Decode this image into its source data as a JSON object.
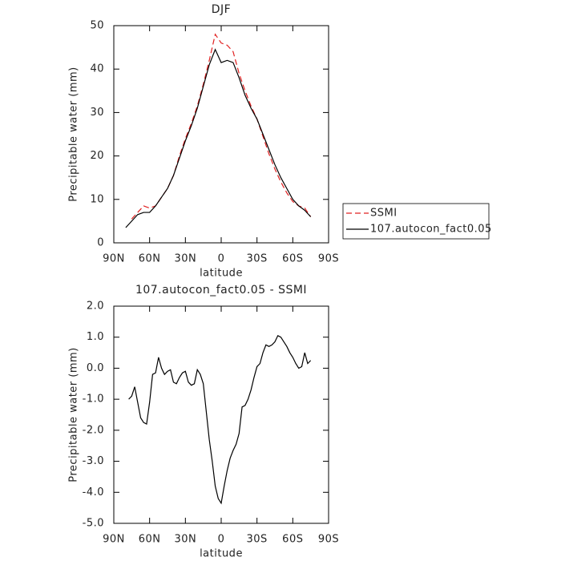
{
  "chart_data": [
    {
      "type": "line",
      "title": "DJF",
      "xlabel": "latitude",
      "ylabel": "Precipitable water (mm)",
      "x": [
        80,
        75,
        70,
        65,
        60,
        55,
        50,
        45,
        40,
        35,
        30,
        25,
        20,
        15,
        10,
        5,
        0,
        -5,
        -10,
        -15,
        -20,
        -25,
        -30,
        -35,
        -40,
        -45,
        -50,
        -55,
        -60,
        -65,
        -70,
        -75
      ],
      "series": [
        {
          "name": "SSMI",
          "color": "#e02020",
          "dash": "dashed",
          "values": [
            null,
            5.5,
            7,
            8.5,
            8,
            8.5,
            10.5,
            12.5,
            15.5,
            20,
            24,
            27.5,
            31.5,
            36.5,
            42,
            48,
            46,
            45.5,
            44,
            39,
            35,
            31.5,
            28.5,
            24.5,
            20.5,
            17,
            14,
            11.5,
            9.5,
            8.5,
            8,
            6
          ]
        },
        {
          "name": "107.autocon_fact0.05",
          "color": "#000000",
          "dash": "solid",
          "values": [
            3.5,
            5,
            6.5,
            7,
            7,
            8.5,
            10.5,
            12.5,
            15.5,
            19.5,
            23.5,
            27,
            31,
            36,
            41,
            44.5,
            41.5,
            42,
            41.5,
            38,
            34,
            31,
            28.5,
            25,
            21.5,
            18,
            15,
            12.5,
            10,
            8.5,
            7.5,
            6
          ]
        }
      ],
      "xlim": [
        90,
        -90
      ],
      "xticks": [
        {
          "value": 90,
          "label": "90N"
        },
        {
          "value": 60,
          "label": "60N"
        },
        {
          "value": 30,
          "label": "30N"
        },
        0,
        {
          "value": -30,
          "label": "30S"
        },
        {
          "value": -60,
          "label": "60S"
        },
        {
          "value": -90,
          "label": "90S"
        }
      ],
      "ylim": [
        0,
        50
      ],
      "yticks": [
        0,
        10,
        20,
        30,
        40,
        50
      ],
      "legend": "right"
    },
    {
      "type": "line",
      "title": "107.autocon_fact0.05 - SSMI",
      "xlabel": "latitude",
      "ylabel": "Precipitable water (mm)",
      "x": [
        77.5,
        75,
        72.5,
        70,
        67.5,
        65,
        62.5,
        60,
        57.5,
        55,
        52.5,
        50,
        47.5,
        45,
        42.5,
        40,
        37.5,
        35,
        32.5,
        30,
        27.5,
        25,
        22.5,
        20,
        17.5,
        15,
        12.5,
        10,
        7.5,
        5,
        2.5,
        0,
        -2.5,
        -5,
        -7.5,
        -10,
        -12.5,
        -15,
        -17.5,
        -20,
        -22.5,
        -25,
        -27.5,
        -30,
        -32.5,
        -35,
        -37.5,
        -40,
        -42.5,
        -45,
        -47.5,
        -50,
        -52.5,
        -55,
        -57.5,
        -60,
        -62.5,
        -65,
        -67.5,
        -70,
        -72.5,
        -75
      ],
      "series": [
        {
          "color": "#000000",
          "dash": "solid",
          "values": [
            -1.0,
            -0.9,
            -0.6,
            -1.1,
            -1.6,
            -1.75,
            -1.8,
            -1.1,
            -0.2,
            -0.15,
            0.35,
            0.0,
            -0.2,
            -0.1,
            -0.05,
            -0.45,
            -0.5,
            -0.3,
            -0.15,
            -0.1,
            -0.45,
            -0.55,
            -0.5,
            -0.05,
            -0.2,
            -0.5,
            -1.4,
            -2.3,
            -3.0,
            -3.8,
            -4.2,
            -4.35,
            -3.8,
            -3.3,
            -2.9,
            -2.65,
            -2.45,
            -2.1,
            -1.25,
            -1.2,
            -1.0,
            -0.7,
            -0.3,
            0.05,
            0.15,
            0.5,
            0.75,
            0.7,
            0.75,
            0.85,
            1.05,
            1.0,
            0.85,
            0.7,
            0.5,
            0.35,
            0.15,
            0.0,
            0.05,
            0.5,
            0.15,
            0.25
          ]
        }
      ],
      "xlim": [
        90,
        -90
      ],
      "xticks": [
        {
          "value": 90,
          "label": "90N"
        },
        {
          "value": 60,
          "label": "60N"
        },
        {
          "value": 30,
          "label": "30N"
        },
        0,
        {
          "value": -30,
          "label": "30S"
        },
        {
          "value": -60,
          "label": "60S"
        },
        {
          "value": -90,
          "label": "90S"
        }
      ],
      "ylim": [
        -5,
        2
      ],
      "yticks": [
        {
          "value": -5,
          "label": "-5.0"
        },
        {
          "value": -4,
          "label": "-4.0"
        },
        {
          "value": -3,
          "label": "-3.0"
        },
        {
          "value": -2,
          "label": "-2.0"
        },
        {
          "value": -1,
          "label": "-1.0"
        },
        {
          "value": 0,
          "label": "0.0"
        },
        {
          "value": 1,
          "label": "1.0"
        },
        {
          "value": 2,
          "label": "2.0"
        }
      ]
    }
  ]
}
